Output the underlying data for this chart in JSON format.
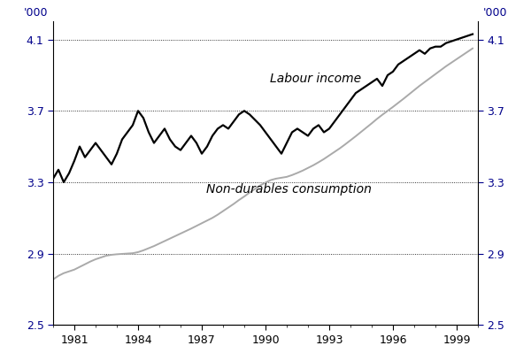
{
  "ylabel_left": "'000",
  "ylabel_right": "'000",
  "ylim": [
    2.5,
    4.2
  ],
  "yticks": [
    2.5,
    2.9,
    3.3,
    3.7,
    4.1
  ],
  "ytick_labels": [
    "2.5",
    "2.9",
    "3.3",
    "3.7",
    "4.1"
  ],
  "xlim_start": 1980.0,
  "xlim_end": 1999.75,
  "xtick_positions": [
    1981,
    1984,
    1987,
    1990,
    1993,
    1996,
    1999
  ],
  "xtick_labels": [
    "1981",
    "1984",
    "1987",
    "1990",
    "1993",
    "1996",
    "1999"
  ],
  "labour_income_color": "#000000",
  "consumption_color": "#aaaaaa",
  "labour_income_linewidth": 1.6,
  "consumption_linewidth": 1.4,
  "grid_color": "#000000",
  "grid_linewidth": 0.6,
  "background_color": "#ffffff",
  "label_labour": "Labour income",
  "label_consumption": "Non-durables consumption",
  "label_fontsize": 10,
  "axis_label_color": "#00008B",
  "labour_income_x": [
    1980.0,
    1980.25,
    1980.5,
    1980.75,
    1981.0,
    1981.25,
    1981.5,
    1981.75,
    1982.0,
    1982.25,
    1982.5,
    1982.75,
    1983.0,
    1983.25,
    1983.5,
    1983.75,
    1984.0,
    1984.25,
    1984.5,
    1984.75,
    1985.0,
    1985.25,
    1985.5,
    1985.75,
    1986.0,
    1986.25,
    1986.5,
    1986.75,
    1987.0,
    1987.25,
    1987.5,
    1987.75,
    1988.0,
    1988.25,
    1988.5,
    1988.75,
    1989.0,
    1989.25,
    1989.5,
    1989.75,
    1990.0,
    1990.25,
    1990.5,
    1990.75,
    1991.0,
    1991.25,
    1991.5,
    1991.75,
    1992.0,
    1992.25,
    1992.5,
    1992.75,
    1993.0,
    1993.25,
    1993.5,
    1993.75,
    1994.0,
    1994.25,
    1994.5,
    1994.75,
    1995.0,
    1995.25,
    1995.5,
    1995.75,
    1996.0,
    1996.25,
    1996.5,
    1996.75,
    1997.0,
    1997.25,
    1997.5,
    1997.75,
    1998.0,
    1998.25,
    1998.5,
    1998.75,
    1999.0,
    1999.25,
    1999.5,
    1999.75
  ],
  "labour_income_y": [
    3.32,
    3.37,
    3.3,
    3.35,
    3.42,
    3.5,
    3.44,
    3.48,
    3.52,
    3.48,
    3.44,
    3.4,
    3.46,
    3.54,
    3.58,
    3.62,
    3.7,
    3.66,
    3.58,
    3.52,
    3.56,
    3.6,
    3.54,
    3.5,
    3.48,
    3.52,
    3.56,
    3.52,
    3.46,
    3.5,
    3.56,
    3.6,
    3.62,
    3.6,
    3.64,
    3.68,
    3.7,
    3.68,
    3.65,
    3.62,
    3.58,
    3.54,
    3.5,
    3.46,
    3.52,
    3.58,
    3.6,
    3.58,
    3.56,
    3.6,
    3.62,
    3.58,
    3.6,
    3.64,
    3.68,
    3.72,
    3.76,
    3.8,
    3.82,
    3.84,
    3.86,
    3.88,
    3.84,
    3.9,
    3.92,
    3.96,
    3.98,
    4.0,
    4.02,
    4.04,
    4.02,
    4.05,
    4.06,
    4.06,
    4.08,
    4.09,
    4.1,
    4.11,
    4.12,
    4.13
  ],
  "consumption_x": [
    1980.0,
    1980.25,
    1980.5,
    1980.75,
    1981.0,
    1981.25,
    1981.5,
    1981.75,
    1982.0,
    1982.25,
    1982.5,
    1982.75,
    1983.0,
    1983.25,
    1983.5,
    1983.75,
    1984.0,
    1984.25,
    1984.5,
    1984.75,
    1985.0,
    1985.25,
    1985.5,
    1985.75,
    1986.0,
    1986.25,
    1986.5,
    1986.75,
    1987.0,
    1987.25,
    1987.5,
    1987.75,
    1988.0,
    1988.25,
    1988.5,
    1988.75,
    1989.0,
    1989.25,
    1989.5,
    1989.75,
    1990.0,
    1990.25,
    1990.5,
    1990.75,
    1991.0,
    1991.25,
    1991.5,
    1991.75,
    1992.0,
    1992.25,
    1992.5,
    1992.75,
    1993.0,
    1993.25,
    1993.5,
    1993.75,
    1994.0,
    1994.25,
    1994.5,
    1994.75,
    1995.0,
    1995.25,
    1995.5,
    1995.75,
    1996.0,
    1996.25,
    1996.5,
    1996.75,
    1997.0,
    1997.25,
    1997.5,
    1997.75,
    1998.0,
    1998.25,
    1998.5,
    1998.75,
    1999.0,
    1999.25,
    1999.5,
    1999.75
  ],
  "consumption_y": [
    2.755,
    2.775,
    2.79,
    2.8,
    2.81,
    2.825,
    2.84,
    2.855,
    2.868,
    2.878,
    2.888,
    2.893,
    2.896,
    2.898,
    2.9,
    2.902,
    2.908,
    2.918,
    2.93,
    2.942,
    2.956,
    2.97,
    2.984,
    2.998,
    3.012,
    3.026,
    3.04,
    3.055,
    3.07,
    3.085,
    3.1,
    3.118,
    3.138,
    3.158,
    3.178,
    3.2,
    3.22,
    3.242,
    3.262,
    3.282,
    3.298,
    3.312,
    3.32,
    3.325,
    3.33,
    3.34,
    3.352,
    3.365,
    3.38,
    3.395,
    3.412,
    3.43,
    3.45,
    3.47,
    3.49,
    3.512,
    3.535,
    3.558,
    3.582,
    3.606,
    3.63,
    3.655,
    3.678,
    3.7,
    3.722,
    3.745,
    3.768,
    3.792,
    3.816,
    3.84,
    3.862,
    3.884,
    3.906,
    3.928,
    3.95,
    3.97,
    3.99,
    4.01,
    4.03,
    4.05
  ]
}
